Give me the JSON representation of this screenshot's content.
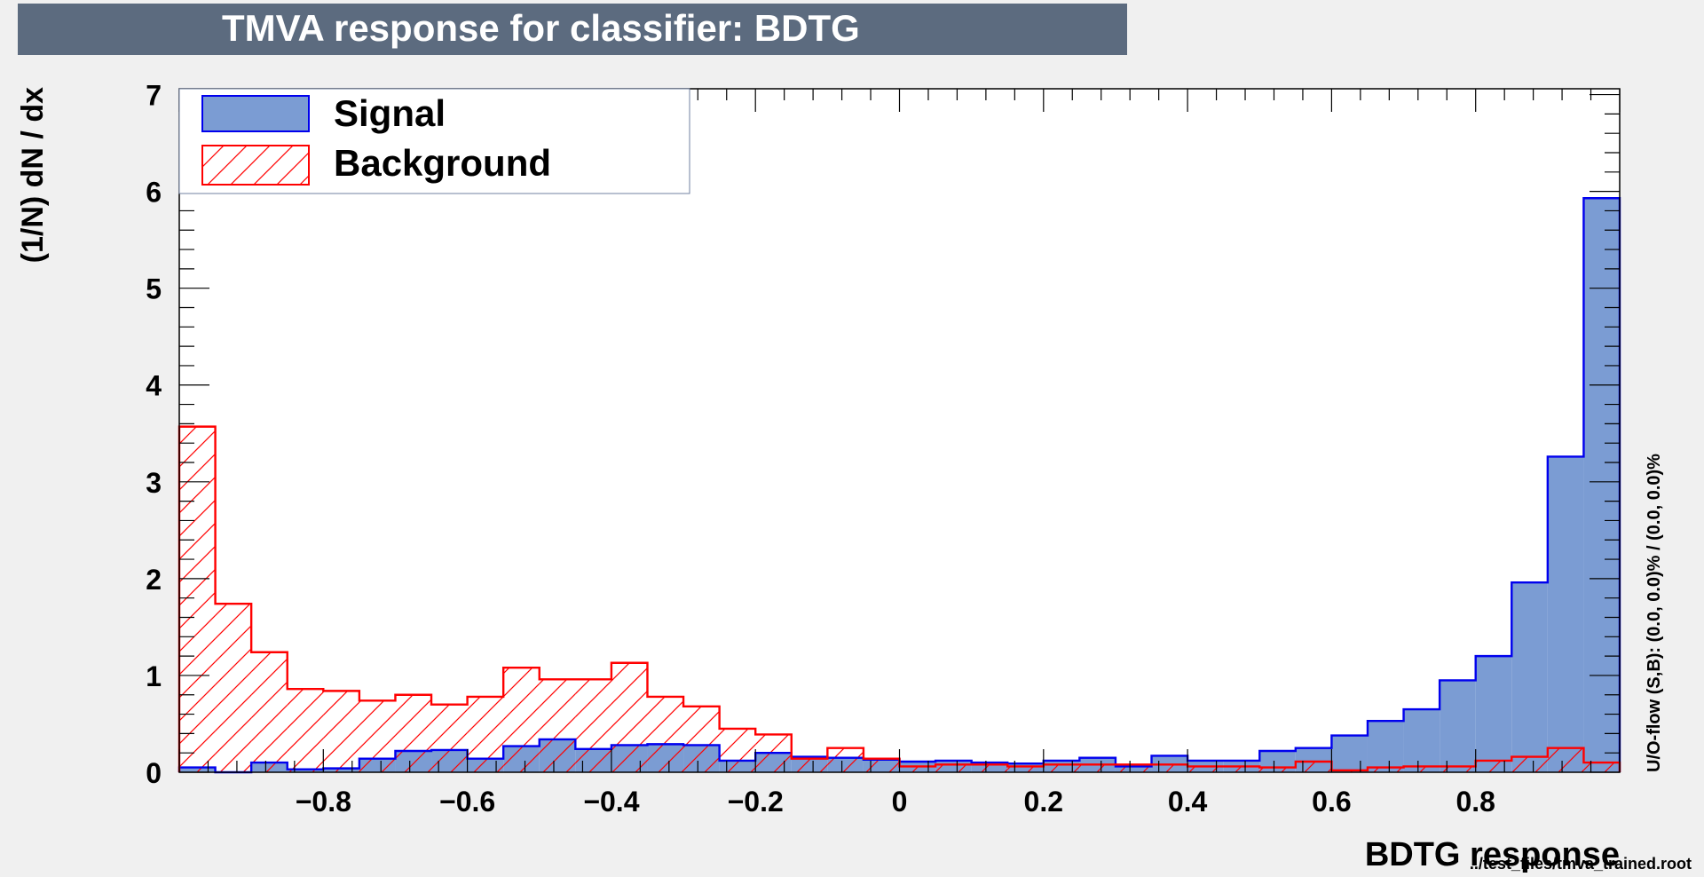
{
  "chart_data": {
    "type": "bar",
    "title": "TMVA response for classifier: BDTG",
    "xlabel": "BDTG response",
    "ylabel": "(1/N) dN / dx",
    "overflow_label": "U/O-flow (S,B): (0.0, 0.0)% / (0.0, 0.0)%",
    "footer": "../test_files/tmva_trained.root",
    "xlim": [
      -1.0,
      1.0
    ],
    "ylim": [
      0,
      7.06
    ],
    "x_ticks": [
      -0.8,
      -0.6,
      -0.4,
      -0.2,
      0,
      0.2,
      0.4,
      0.6,
      0.8
    ],
    "x_tick_labels": [
      "−0.8",
      "−0.6",
      "−0.4",
      "−0.2",
      "0",
      "0.2",
      "0.4",
      "0.6",
      "0.8"
    ],
    "y_ticks": [
      0,
      1,
      2,
      3,
      4,
      5,
      6,
      7
    ],
    "y_tick_labels": [
      "0",
      "1",
      "2",
      "3",
      "4",
      "5",
      "6",
      "7"
    ],
    "bin_edges": [
      -1.0,
      -0.95,
      -0.9,
      -0.85,
      -0.8,
      -0.75,
      -0.7,
      -0.65,
      -0.6,
      -0.55,
      -0.5,
      -0.45,
      -0.4,
      -0.35,
      -0.3,
      -0.25,
      -0.2,
      -0.15,
      -0.1,
      -0.05,
      0.0,
      0.05,
      0.1,
      0.15,
      0.2,
      0.25,
      0.3,
      0.35,
      0.4,
      0.45,
      0.5,
      0.55,
      0.6,
      0.65,
      0.7,
      0.75,
      0.8,
      0.85,
      0.9,
      0.95,
      1.0
    ],
    "legend_position": "top-left",
    "series": [
      {
        "name": "Signal",
        "style": "filled",
        "fill_color": "#7b9cd3",
        "line_color": "#0000ee",
        "values": [
          0.05,
          0.0,
          0.1,
          0.03,
          0.04,
          0.14,
          0.22,
          0.23,
          0.14,
          0.27,
          0.34,
          0.24,
          0.28,
          0.29,
          0.28,
          0.12,
          0.2,
          0.16,
          0.15,
          0.13,
          0.11,
          0.12,
          0.1,
          0.09,
          0.12,
          0.15,
          0.06,
          0.17,
          0.12,
          0.12,
          0.22,
          0.25,
          0.38,
          0.53,
          0.65,
          0.95,
          1.2,
          1.96,
          3.26,
          5.93
        ]
      },
      {
        "name": "Background",
        "style": "hatched",
        "fill_color": "#ff0000",
        "line_color": "#ff0000",
        "values": [
          3.57,
          1.74,
          1.24,
          0.86,
          0.84,
          0.74,
          0.8,
          0.7,
          0.78,
          1.08,
          0.96,
          0.96,
          1.13,
          0.78,
          0.68,
          0.45,
          0.39,
          0.14,
          0.25,
          0.14,
          0.06,
          0.08,
          0.08,
          0.06,
          0.08,
          0.08,
          0.08,
          0.08,
          0.06,
          0.06,
          0.05,
          0.11,
          0.02,
          0.05,
          0.06,
          0.06,
          0.12,
          0.16,
          0.25,
          0.1
        ]
      }
    ]
  }
}
